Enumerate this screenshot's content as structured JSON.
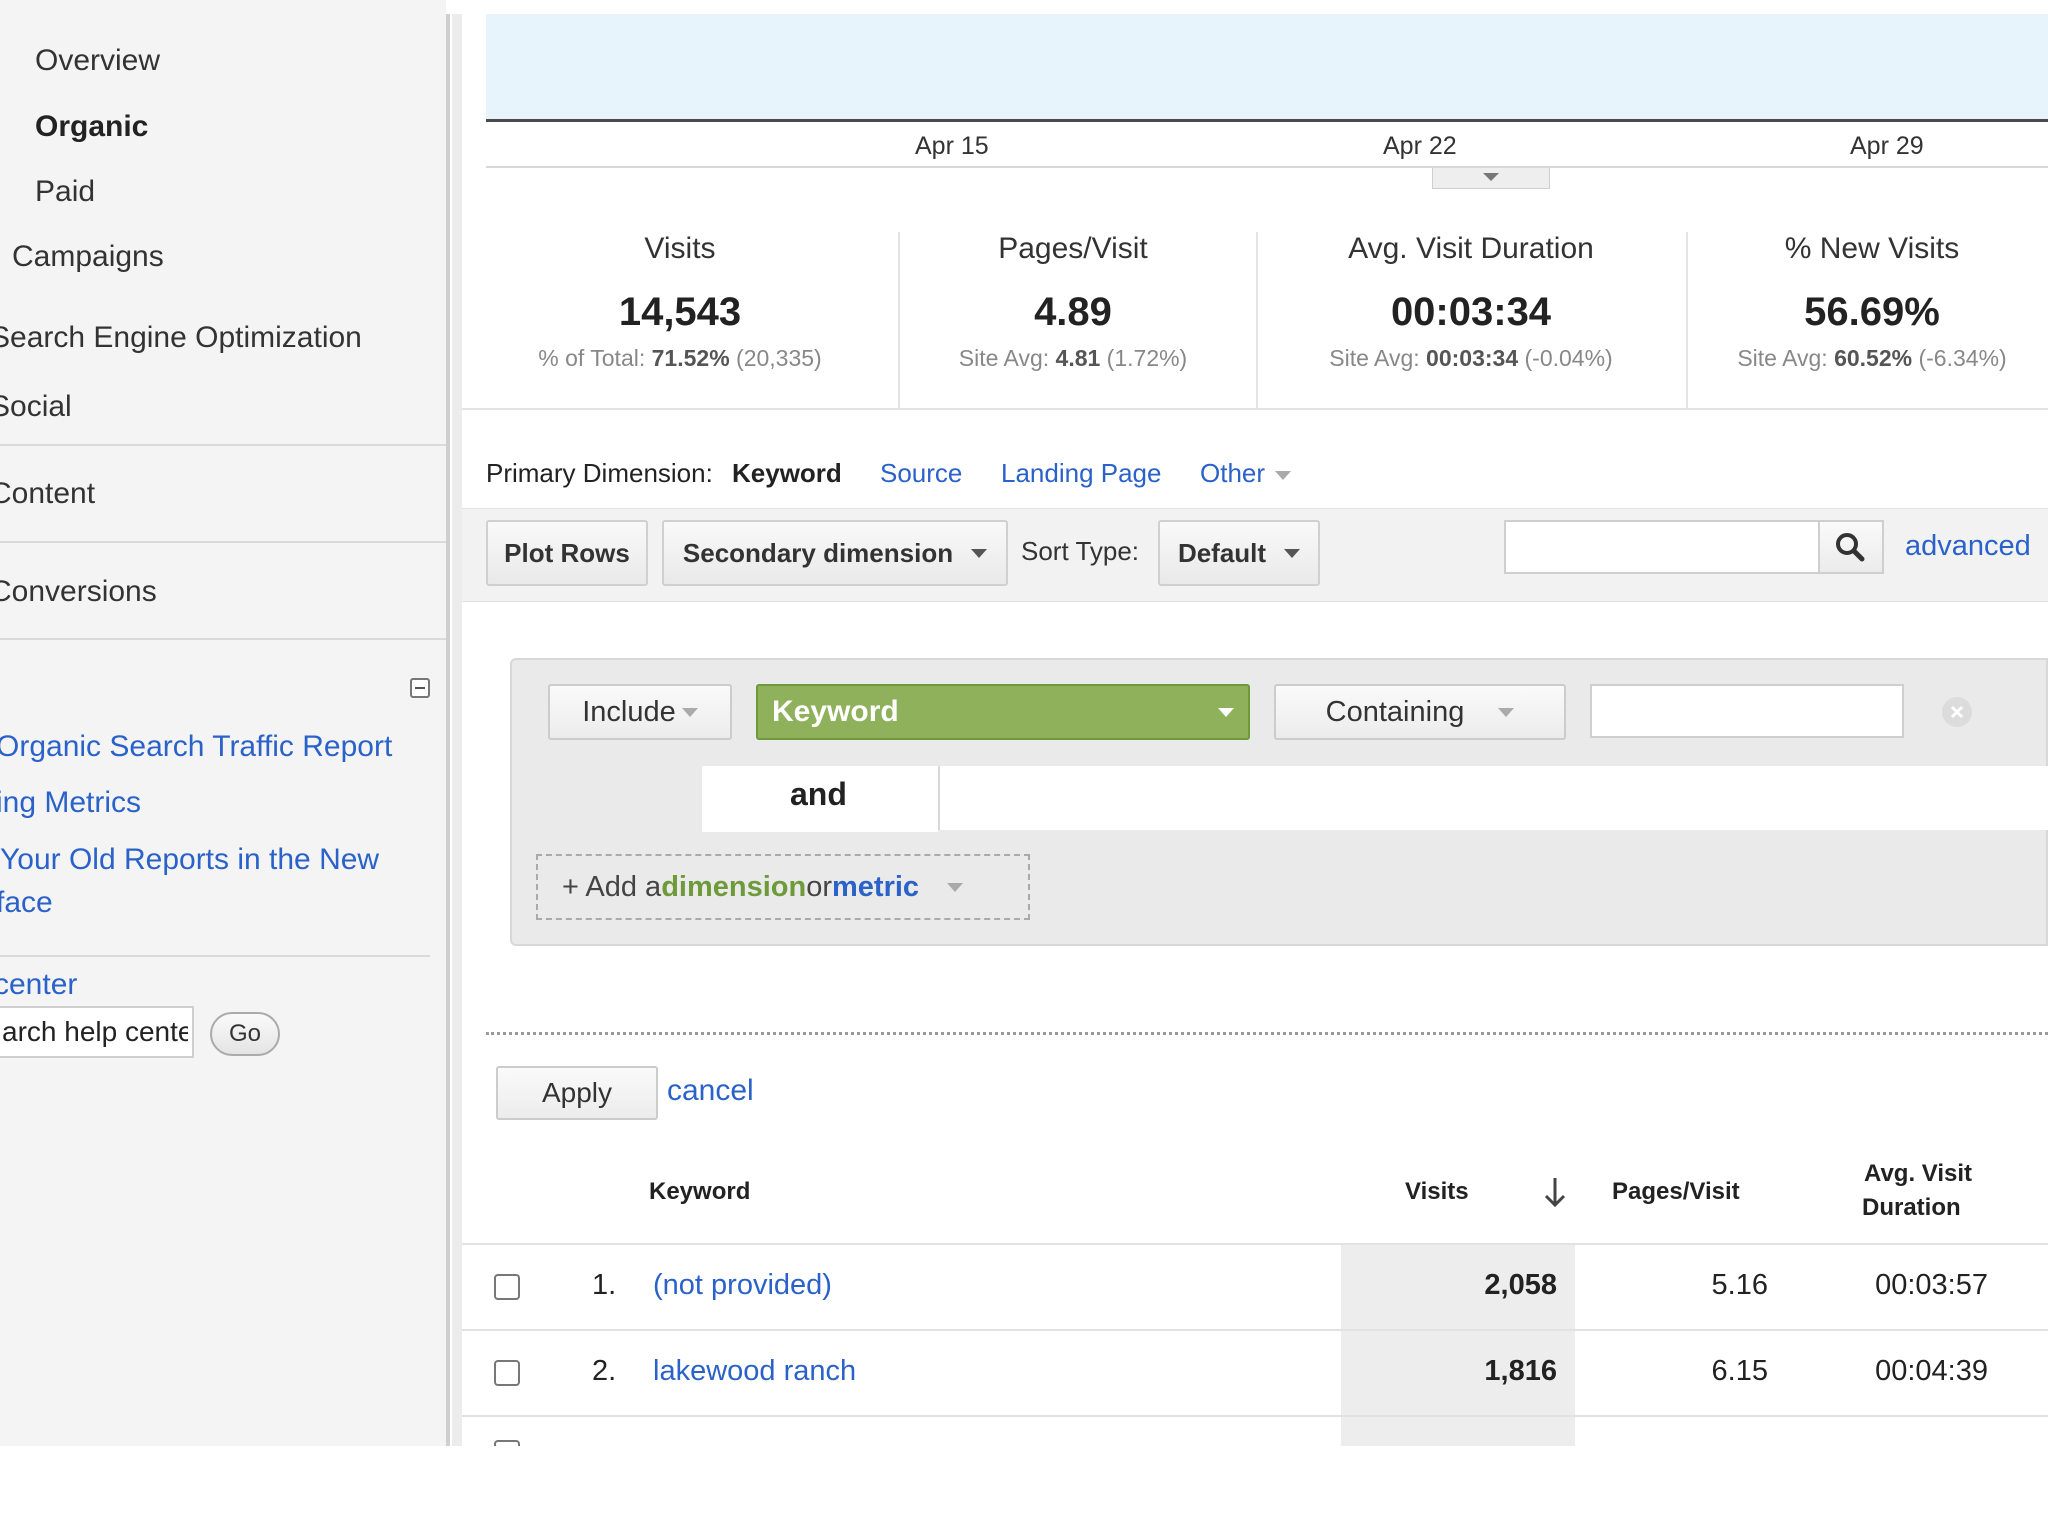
{
  "sidebar": {
    "items": [
      {
        "label": "Overview",
        "active": false
      },
      {
        "label": "Organic",
        "active": true
      },
      {
        "label": "Paid",
        "active": false
      },
      {
        "label": "Campaigns",
        "active": false
      },
      {
        "label": "Search Engine Optimization",
        "active": false
      },
      {
        "label": "Social",
        "active": false
      },
      {
        "label": "Content",
        "active": false
      },
      {
        "label": "Conversions",
        "active": false
      }
    ],
    "collapse_icon": "minus-box-icon",
    "links": [
      "Organic Search Traffic Report",
      "ing Metrics",
      "Your Old Reports in the New",
      "face"
    ],
    "help_center_label": "center",
    "help_search_value": "arch help center",
    "go_label": "Go"
  },
  "chart": {
    "x_ticks": [
      "Apr 15",
      "Apr 22",
      "Apr 29"
    ]
  },
  "stats": [
    {
      "label": "Visits",
      "value": "14,543",
      "sub_prefix": "% of Total: ",
      "sub_bold": "71.52%",
      "sub_suffix": " (20,335)"
    },
    {
      "label": "Pages/Visit",
      "value": "4.89",
      "sub_prefix": "Site Avg: ",
      "sub_bold": "4.81",
      "sub_suffix": " (1.72%)"
    },
    {
      "label": "Avg. Visit Duration",
      "value": "00:03:34",
      "sub_prefix": "Site Avg: ",
      "sub_bold": "00:03:34",
      "sub_suffix": " (-0.04%)"
    },
    {
      "label": "% New Visits",
      "value": "56.69%",
      "sub_prefix": "Site Avg: ",
      "sub_bold": "60.52%",
      "sub_suffix": " (-6.34%)"
    }
  ],
  "primary_dimension": {
    "label": "Primary Dimension:",
    "active": "Keyword",
    "links": [
      "Source",
      "Landing Page",
      "Other"
    ]
  },
  "toolbar": {
    "plot_rows": "Plot Rows",
    "secondary_dimension": "Secondary dimension",
    "sort_type_label": "Sort Type:",
    "sort_type_value": "Default",
    "search_value": "",
    "advanced": "advanced"
  },
  "filter": {
    "include": "Include",
    "dimension": "Keyword",
    "match": "Containing",
    "value": "",
    "and_label": "and",
    "add_plus": "+ Add a ",
    "add_dimension": "dimension",
    "add_or": " or ",
    "add_metric": "metric",
    "apply": "Apply",
    "cancel": "cancel"
  },
  "table": {
    "columns": [
      "Keyword",
      "Visits",
      "Pages/Visit",
      "Avg. Visit",
      "Duration"
    ],
    "rows": [
      {
        "index": "1.",
        "keyword": "(not provided)",
        "visits": "2,058",
        "pages_visit": "5.16",
        "duration": "00:03:57"
      },
      {
        "index": "2.",
        "keyword": "lakewood ranch",
        "visits": "1,816",
        "pages_visit": "6.15",
        "duration": "00:04:39"
      }
    ]
  }
}
